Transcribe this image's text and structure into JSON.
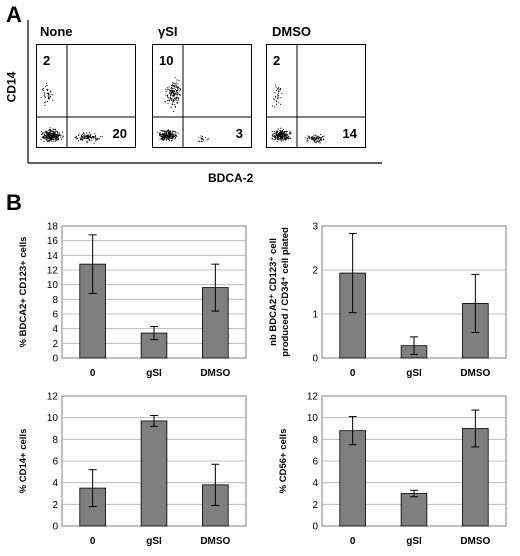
{
  "panels": {
    "a": "A",
    "b": "B"
  },
  "flow": {
    "y_axis_label": "CD14",
    "x_axis_label": "BDCA-2",
    "plots": [
      {
        "title": "None",
        "quadrants": {
          "upper_left": "2",
          "lower_right": "20"
        }
      },
      {
        "title": "γSI",
        "quadrants": {
          "upper_left": "10",
          "lower_right": "3"
        }
      },
      {
        "title": "DMSO",
        "quadrants": {
          "upper_left": "2",
          "lower_right": "14"
        }
      }
    ]
  },
  "chart_data": [
    {
      "type": "bar",
      "categories": [
        "0",
        "gSI",
        "DMSO"
      ],
      "values": [
        12.8,
        3.4,
        9.6
      ],
      "errors": [
        4.0,
        0.9,
        3.2
      ],
      "ylabel": "% BDCA2+ CD123+ cells",
      "ylim": [
        0,
        18
      ],
      "yticks": [
        "0",
        "2",
        "4",
        "6",
        "8",
        "10",
        "12",
        "14",
        "16",
        "18"
      ],
      "grid": true,
      "bar_color": "#7f7f7f"
    },
    {
      "type": "bar",
      "categories": [
        "0",
        "gSI",
        "DMSO"
      ],
      "values": [
        1.93,
        0.28,
        1.24
      ],
      "errors": [
        0.9,
        0.2,
        0.66
      ],
      "ylabel_lines": [
        "nb BDCA2⁺ CD123⁺ cell",
        "produced / CD34⁺ cell plated"
      ],
      "ylim": [
        0,
        3
      ],
      "yticks": [
        "0",
        "1",
        "2",
        "3"
      ],
      "grid": true,
      "bar_color": "#7f7f7f"
    },
    {
      "type": "bar",
      "categories": [
        "0",
        "gSI",
        "DMSO"
      ],
      "values": [
        3.5,
        9.7,
        3.8
      ],
      "errors": [
        1.7,
        0.5,
        1.9
      ],
      "ylabel": "% CD14+ cells",
      "ylim": [
        0,
        12
      ],
      "yticks": [
        "0",
        "2",
        "4",
        "6",
        "8",
        "10",
        "12"
      ],
      "grid": true,
      "bar_color": "#7f7f7f"
    },
    {
      "type": "bar",
      "categories": [
        "0",
        "gSI",
        "DMSO"
      ],
      "values": [
        8.8,
        3.0,
        9.0
      ],
      "errors": [
        1.3,
        0.3,
        1.7
      ],
      "ylabel": "% CD56+ cells",
      "ylim": [
        0,
        12
      ],
      "yticks": [
        "0",
        "2",
        "4",
        "6",
        "8",
        "10",
        "12"
      ],
      "grid": true,
      "bar_color": "#7f7f7f"
    }
  ]
}
